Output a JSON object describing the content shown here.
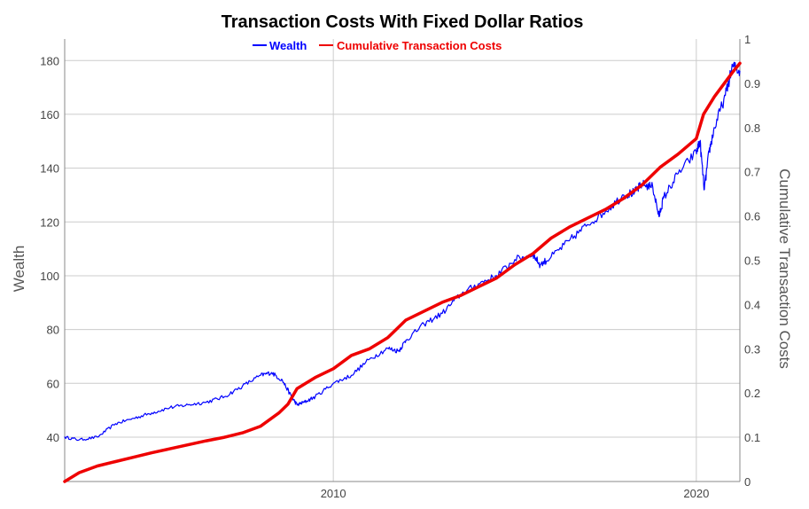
{
  "chart_data": {
    "type": "line",
    "title": "Transaction Costs With Fixed Dollar Ratios",
    "ylabel": "Wealth",
    "y2label": "Cumulative Transaction Costs",
    "xlabel": "",
    "xlim": [
      2002.6,
      2021.2
    ],
    "ylim": [
      23.5,
      188
    ],
    "y2lim": [
      0,
      1
    ],
    "x_ticks": [
      {
        "value": 2010,
        "label": "2010"
      },
      {
        "value": 2020,
        "label": "2020"
      }
    ],
    "y_ticks": [
      {
        "value": 40,
        "label": "40"
      },
      {
        "value": 60,
        "label": "60"
      },
      {
        "value": 80,
        "label": "80"
      },
      {
        "value": 100,
        "label": "100"
      },
      {
        "value": 120,
        "label": "120"
      },
      {
        "value": 140,
        "label": "140"
      },
      {
        "value": 160,
        "label": "160"
      },
      {
        "value": 180,
        "label": "180"
      }
    ],
    "y2_ticks": [
      {
        "value": 0,
        "label": "0"
      },
      {
        "value": 0.1,
        "label": "0.1"
      },
      {
        "value": 0.2,
        "label": "0.2"
      },
      {
        "value": 0.3,
        "label": "0.3"
      },
      {
        "value": 0.4,
        "label": "0.4"
      },
      {
        "value": 0.5,
        "label": "0.5"
      },
      {
        "value": 0.6,
        "label": "0.6"
      },
      {
        "value": 0.7,
        "label": "0.7"
      },
      {
        "value": 0.8,
        "label": "0.8"
      },
      {
        "value": 0.9,
        "label": "0.9"
      },
      {
        "value": 1,
        "label": "1"
      }
    ],
    "grid": true,
    "legend_position": "top-center",
    "series": [
      {
        "name": "Wealth",
        "axis": "left",
        "color": "#0000ff",
        "x": [
          2002.6,
          2003.0,
          2003.5,
          2004.0,
          2004.5,
          2005.0,
          2005.5,
          2006.0,
          2006.5,
          2007.0,
          2007.5,
          2008.0,
          2008.3,
          2008.6,
          2008.85,
          2009.0,
          2009.2,
          2009.5,
          2010.0,
          2010.5,
          2011.0,
          2011.5,
          2011.8,
          2012.0,
          2012.5,
          2013.0,
          2013.5,
          2014.0,
          2014.5,
          2015.0,
          2015.5,
          2015.7,
          2016.0,
          2016.5,
          2017.0,
          2017.5,
          2018.0,
          2018.3,
          2018.5,
          2018.8,
          2018.97,
          2019.1,
          2019.5,
          2020.0,
          2020.1,
          2020.22,
          2020.35,
          2020.5,
          2020.8,
          2021.0,
          2021.2
        ],
        "values": [
          40,
          39,
          40,
          45,
          47,
          49,
          51,
          52,
          53,
          55,
          59,
          63,
          64,
          61,
          55,
          52,
          53,
          55,
          60,
          63,
          69,
          73,
          72,
          76,
          82,
          86,
          93,
          97,
          100,
          106,
          108,
          104,
          107,
          113,
          119,
          124,
          130,
          131,
          134,
          133,
          122,
          129,
          138,
          146,
          150,
          132,
          146,
          155,
          167,
          178,
          176
        ]
      },
      {
        "name": "Cumulative Transaction Costs",
        "axis": "right",
        "color": "#ee0000",
        "x": [
          2002.6,
          2003.0,
          2003.5,
          2004.0,
          2004.5,
          2005.0,
          2005.5,
          2006.0,
          2006.5,
          2007.0,
          2007.5,
          2008.0,
          2008.5,
          2008.75,
          2009.0,
          2009.5,
          2010.0,
          2010.5,
          2011.0,
          2011.5,
          2012.0,
          2012.5,
          2013.0,
          2013.5,
          2014.0,
          2014.5,
          2015.0,
          2015.5,
          2016.0,
          2016.5,
          2017.0,
          2017.5,
          2018.0,
          2018.5,
          2019.0,
          2019.5,
          2020.0,
          2020.2,
          2020.5,
          2021.0,
          2021.2
        ],
        "values": [
          0,
          0.02,
          0.035,
          0.045,
          0.055,
          0.065,
          0.074,
          0.083,
          0.092,
          0.1,
          0.11,
          0.125,
          0.155,
          0.175,
          0.21,
          0.235,
          0.255,
          0.285,
          0.3,
          0.325,
          0.365,
          0.385,
          0.405,
          0.42,
          0.44,
          0.46,
          0.49,
          0.515,
          0.55,
          0.575,
          0.595,
          0.615,
          0.64,
          0.67,
          0.71,
          0.74,
          0.775,
          0.83,
          0.87,
          0.925,
          0.945
        ]
      }
    ]
  }
}
